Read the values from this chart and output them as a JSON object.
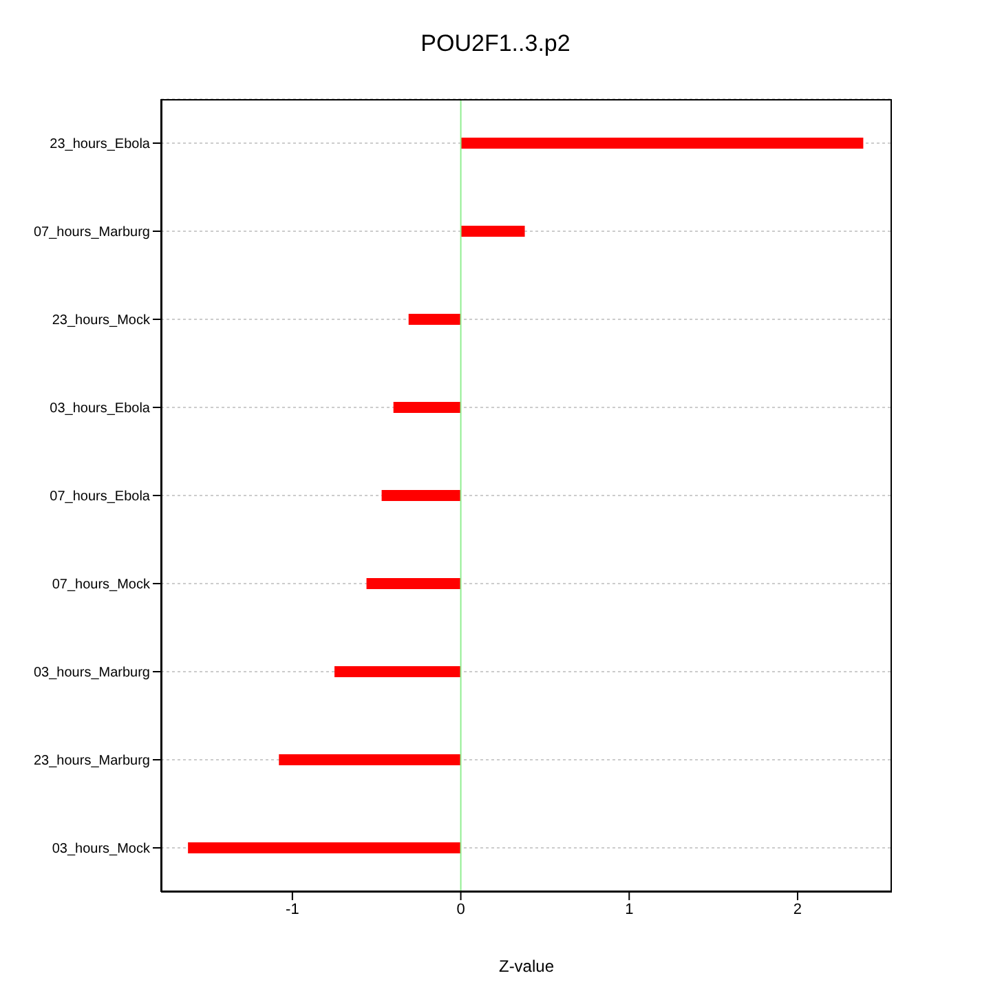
{
  "chart_data": {
    "type": "bar",
    "orientation": "horizontal",
    "title": "POU2F1..3.p2",
    "xlabel": "Z-value",
    "categories": [
      "23_hours_Ebola",
      "07_hours_Marburg",
      "23_hours_Mock",
      "03_hours_Ebola",
      "07_hours_Ebola",
      "07_hours_Mock",
      "03_hours_Marburg",
      "23_hours_Marburg",
      "03_hours_Mock"
    ],
    "values": [
      2.39,
      0.38,
      -0.31,
      -0.4,
      -0.47,
      -0.56,
      -0.75,
      -1.08,
      -1.62
    ],
    "color": "#ff0000",
    "xlim": [
      -1.78,
      2.56
    ],
    "xticks": [
      -1,
      0,
      1,
      2
    ],
    "ref_lines": [
      {
        "axis": "x",
        "value": 0,
        "color": "#90ee90"
      }
    ],
    "grid": "y"
  }
}
